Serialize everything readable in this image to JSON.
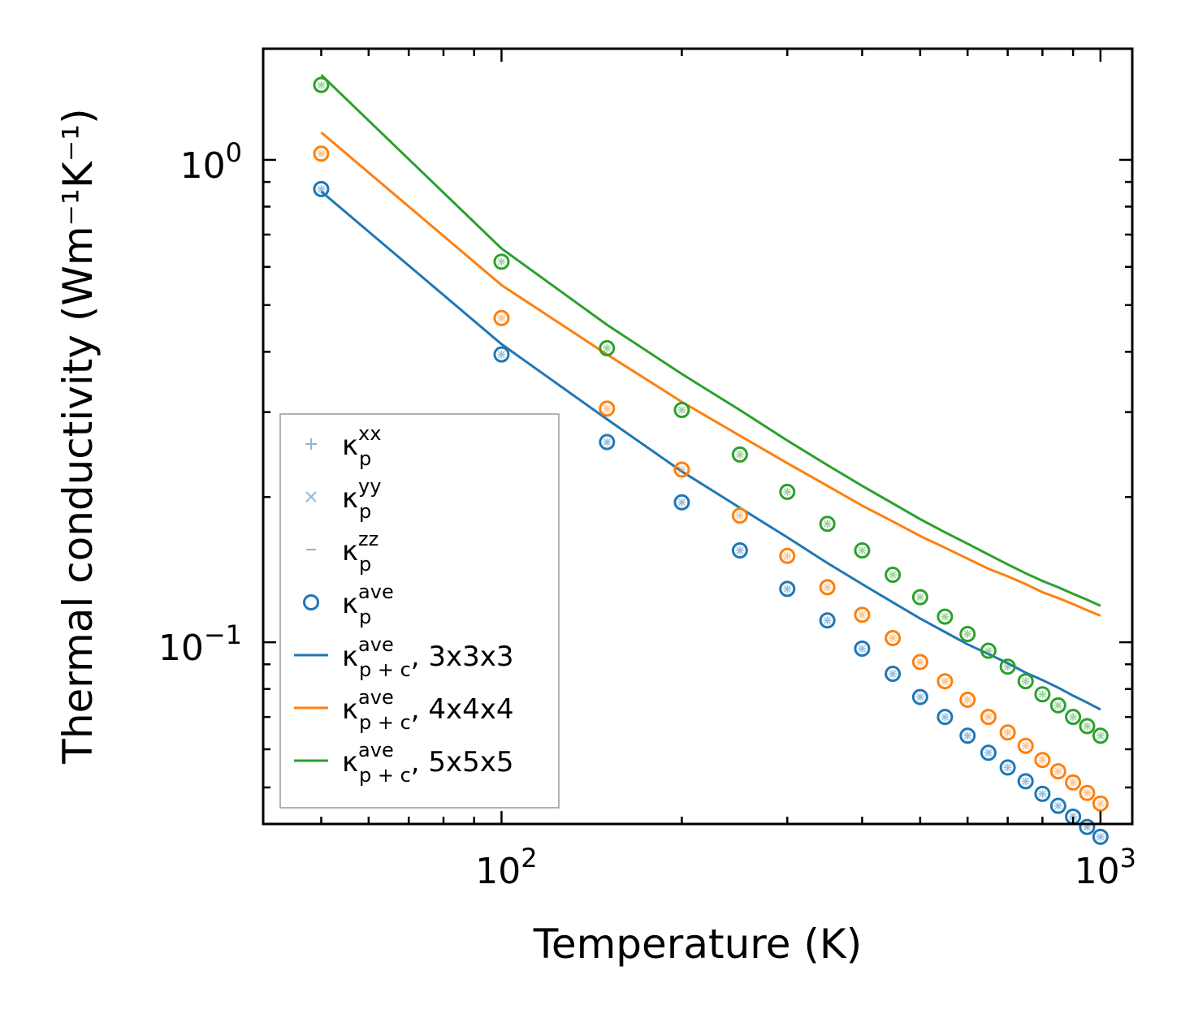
{
  "chart_data": {
    "type": "line",
    "xscale": "log",
    "yscale": "log",
    "xlabel": "Temperature (K)",
    "ylabel": "Thermal conductivity (Wm⁻¹K⁻¹)",
    "xlim": [
      40,
      1130
    ],
    "ylim": [
      0.042,
      1.7
    ],
    "x_ticks": [
      {
        "value": 100,
        "base": "10",
        "exp": "2"
      },
      {
        "value": 1000,
        "base": "10",
        "exp": "3"
      }
    ],
    "y_ticks": [
      {
        "value": 0.1,
        "base": "10",
        "exp": "−1"
      },
      {
        "value": 1,
        "base": "10",
        "exp": "0"
      }
    ],
    "legend": {
      "position": "lower-left",
      "entries": [
        {
          "marker": "plus",
          "symbol": "κ",
          "sub": "p",
          "sup": "xx",
          "suffix": "",
          "color": "#8fb6d6"
        },
        {
          "marker": "x",
          "symbol": "κ",
          "sub": "p",
          "sup": "yy",
          "suffix": "",
          "color": "#8fb6d6"
        },
        {
          "marker": "dash",
          "symbol": "κ",
          "sub": "p",
          "sup": "zz",
          "suffix": "",
          "color": "#8fb6d6"
        },
        {
          "marker": "circle",
          "symbol": "κ",
          "sub": "p",
          "sup": "ave",
          "suffix": "",
          "color": "#1f77b4"
        },
        {
          "marker": "line",
          "symbol": "κ",
          "sub": "p + c",
          "sup": "ave",
          "suffix": ", 3x3x3",
          "color": "#1f77b4"
        },
        {
          "marker": "line",
          "symbol": "κ",
          "sub": "p + c",
          "sup": "ave",
          "suffix": ", 4x4x4",
          "color": "#ff7f0e"
        },
        {
          "marker": "line",
          "symbol": "κ",
          "sub": "p + c",
          "sup": "ave",
          "suffix": ", 5x5x5",
          "color": "#2ca02c"
        }
      ]
    },
    "scatter_x": [
      50,
      100,
      150,
      200,
      250,
      300,
      350,
      400,
      450,
      500,
      550,
      600,
      650,
      700,
      750,
      800,
      850,
      900,
      950,
      1000
    ],
    "scatter_series": [
      {
        "name": "κ_p^ave 3x3x3",
        "color": "#1f77b4",
        "values": [
          0.87,
          0.395,
          0.26,
          0.195,
          0.155,
          0.129,
          0.111,
          0.097,
          0.086,
          0.077,
          0.07,
          0.064,
          0.059,
          0.055,
          0.0515,
          0.0485,
          0.0458,
          0.0435,
          0.0414,
          0.0395
        ]
      },
      {
        "name": "κ_p^ave 4x4x4",
        "color": "#ff7f0e",
        "values": [
          1.03,
          0.47,
          0.305,
          0.228,
          0.183,
          0.151,
          0.13,
          0.114,
          0.102,
          0.091,
          0.083,
          0.076,
          0.07,
          0.065,
          0.061,
          0.057,
          0.054,
          0.0512,
          0.0487,
          0.0463
        ]
      },
      {
        "name": "κ_p^ave 5x5x5",
        "color": "#2ca02c",
        "values": [
          1.43,
          0.615,
          0.407,
          0.303,
          0.245,
          0.205,
          0.176,
          0.155,
          0.138,
          0.124,
          0.113,
          0.104,
          0.096,
          0.089,
          0.083,
          0.078,
          0.074,
          0.07,
          0.067,
          0.064
        ]
      }
    ],
    "line_x": [
      50,
      100,
      150,
      200,
      250,
      300,
      350,
      400,
      450,
      500,
      550,
      600,
      650,
      700,
      750,
      800,
      850,
      900,
      950,
      1000
    ],
    "line_series": [
      {
        "name": "κ_p+c^ave, 3x3x3",
        "color": "#1f77b4",
        "values": [
          0.86,
          0.415,
          0.29,
          0.226,
          0.19,
          0.165,
          0.146,
          0.132,
          0.121,
          0.112,
          0.105,
          0.099,
          0.0945,
          0.0905,
          0.0865,
          0.0835,
          0.0805,
          0.0775,
          0.075,
          0.0725
        ]
      },
      {
        "name": "κ_p+c^ave, 4x4x4",
        "color": "#ff7f0e",
        "values": [
          1.14,
          0.55,
          0.395,
          0.315,
          0.268,
          0.235,
          0.211,
          0.192,
          0.178,
          0.166,
          0.157,
          0.149,
          0.142,
          0.137,
          0.132,
          0.127,
          0.1235,
          0.12,
          0.1165,
          0.1135
        ]
      },
      {
        "name": "κ_p+c^ave, 5x5x5",
        "color": "#2ca02c",
        "values": [
          1.5,
          0.655,
          0.455,
          0.36,
          0.303,
          0.262,
          0.233,
          0.211,
          0.194,
          0.18,
          0.169,
          0.16,
          0.152,
          0.145,
          0.139,
          0.134,
          0.13,
          0.126,
          0.1225,
          0.119
        ]
      }
    ]
  }
}
